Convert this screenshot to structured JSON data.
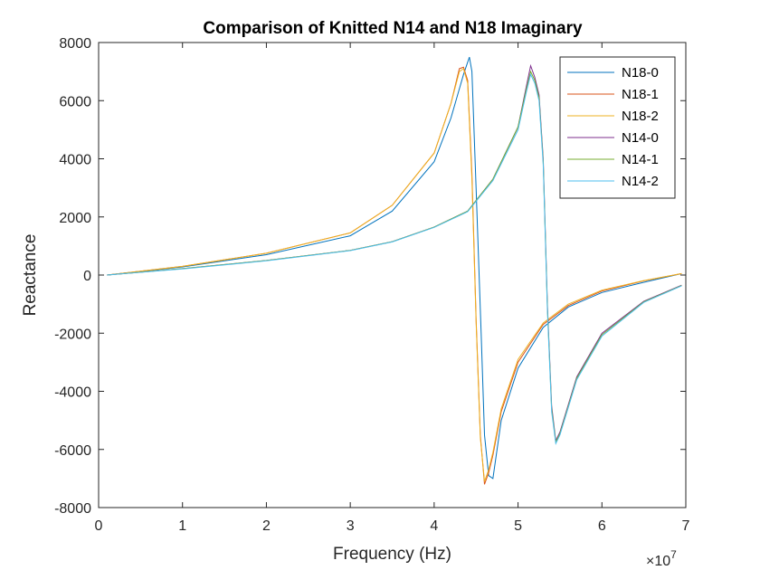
{
  "chart_data": {
    "type": "line",
    "title": "Comparison of Knitted N14 and N18 Imaginary",
    "xlabel": "Frequency (Hz)",
    "ylabel": "Reactance",
    "x_exponent_label": "×10",
    "x_exponent_power": "7",
    "xlim": [
      0,
      7
    ],
    "ylim": [
      -8000,
      8000
    ],
    "x_ticks": [
      0,
      1,
      2,
      3,
      4,
      5,
      6,
      7
    ],
    "x_tick_labels": [
      "0",
      "1",
      "2",
      "3",
      "4",
      "5",
      "6",
      "7"
    ],
    "y_ticks": [
      -8000,
      -6000,
      -4000,
      -2000,
      0,
      2000,
      4000,
      6000,
      8000
    ],
    "y_tick_labels": [
      "-8000",
      "-6000",
      "-4000",
      "-2000",
      "0",
      "2000",
      "4000",
      "6000",
      "8000"
    ],
    "grid": false,
    "legend_position": "top-right",
    "series": [
      {
        "name": "N18-0",
        "color": "#0072BD",
        "x": [
          0.1,
          1.0,
          2.0,
          3.0,
          3.5,
          4.0,
          4.2,
          4.35,
          4.42,
          4.45,
          4.5,
          4.56,
          4.6,
          4.65,
          4.7,
          4.8,
          5.0,
          5.3,
          5.6,
          6.0,
          6.5,
          6.95
        ],
        "y": [
          0,
          280,
          700,
          1350,
          2200,
          3900,
          5400,
          6900,
          7500,
          7000,
          3000,
          -2000,
          -5500,
          -6900,
          -7000,
          -5000,
          -3200,
          -1800,
          -1100,
          -600,
          -250,
          50
        ]
      },
      {
        "name": "N18-1",
        "color": "#D95319",
        "x": [
          0.1,
          1.0,
          2.0,
          3.0,
          3.5,
          4.0,
          4.2,
          4.3,
          4.35,
          4.4,
          4.45,
          4.5,
          4.55,
          4.6,
          4.65,
          4.7,
          4.8,
          5.0,
          5.3,
          5.6,
          6.0,
          6.5,
          6.95
        ],
        "y": [
          0,
          300,
          750,
          1450,
          2400,
          4200,
          5900,
          7100,
          7150,
          6700,
          3500,
          -1500,
          -5500,
          -7200,
          -6800,
          -6200,
          -4700,
          -3000,
          -1700,
          -1050,
          -550,
          -200,
          50
        ]
      },
      {
        "name": "N18-2",
        "color": "#EDB120",
        "x": [
          0.1,
          1.0,
          2.0,
          3.0,
          3.5,
          4.0,
          4.2,
          4.3,
          4.35,
          4.4,
          4.45,
          4.5,
          4.55,
          4.6,
          4.65,
          4.7,
          4.8,
          5.0,
          5.3,
          5.6,
          6.0,
          6.5,
          6.95
        ],
        "y": [
          0,
          300,
          750,
          1450,
          2400,
          4200,
          5900,
          7000,
          7100,
          6600,
          3300,
          -1600,
          -5600,
          -7100,
          -6700,
          -6100,
          -4600,
          -2900,
          -1650,
          -1000,
          -520,
          -190,
          50
        ]
      },
      {
        "name": "N14-0",
        "color": "#7E2F8E",
        "x": [
          0.1,
          1.0,
          2.0,
          3.0,
          3.5,
          4.0,
          4.4,
          4.7,
          5.0,
          5.1,
          5.15,
          5.2,
          5.25,
          5.3,
          5.35,
          5.4,
          5.45,
          5.5,
          5.7,
          6.0,
          6.5,
          6.95
        ],
        "y": [
          0,
          220,
          500,
          850,
          1150,
          1650,
          2200,
          3300,
          5100,
          6500,
          7200,
          6800,
          6200,
          4000,
          -1000,
          -4500,
          -5700,
          -5400,
          -3500,
          -2000,
          -900,
          -350
        ]
      },
      {
        "name": "N14-1",
        "color": "#77AC30",
        "x": [
          0.1,
          1.0,
          2.0,
          3.0,
          3.5,
          4.0,
          4.4,
          4.7,
          5.0,
          5.1,
          5.15,
          5.2,
          5.25,
          5.3,
          5.35,
          5.4,
          5.45,
          5.5,
          5.7,
          6.0,
          6.5,
          6.95
        ],
        "y": [
          0,
          220,
          500,
          850,
          1150,
          1650,
          2200,
          3300,
          5100,
          6400,
          7000,
          6700,
          6100,
          3900,
          -1100,
          -4600,
          -5750,
          -5450,
          -3550,
          -2050,
          -920,
          -360
        ]
      },
      {
        "name": "N14-2",
        "color": "#4DBEEE",
        "x": [
          0.1,
          1.0,
          2.0,
          3.0,
          3.5,
          4.0,
          4.4,
          4.7,
          5.0,
          5.1,
          5.15,
          5.2,
          5.25,
          5.3,
          5.35,
          5.4,
          5.45,
          5.5,
          5.7,
          6.0,
          6.5,
          6.95
        ],
        "y": [
          0,
          210,
          490,
          840,
          1140,
          1640,
          2180,
          3250,
          5000,
          6300,
          6900,
          6600,
          6000,
          3800,
          -1200,
          -4700,
          -5800,
          -5500,
          -3600,
          -2100,
          -940,
          -370
        ]
      }
    ]
  }
}
